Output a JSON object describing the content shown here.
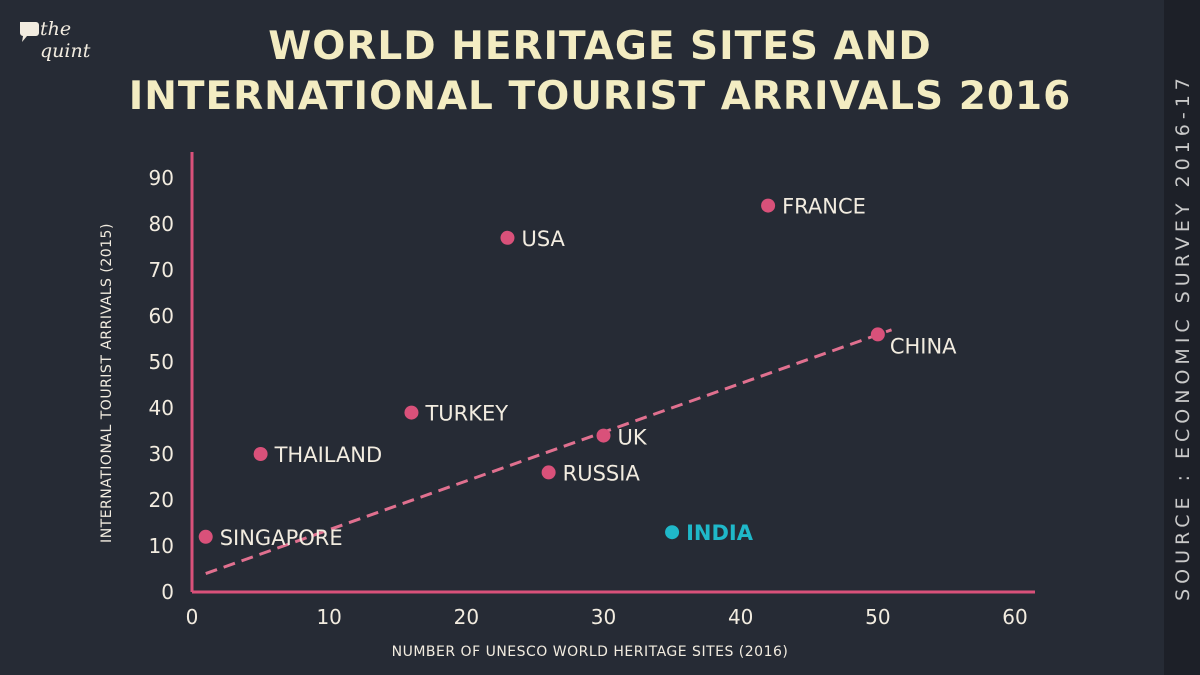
{
  "brand": {
    "line1": "the",
    "line2": "quint",
    "accent": "#e0e0e0"
  },
  "chart_data": {
    "type": "scatter",
    "title_line1": "WORLD HERITAGE SITES AND",
    "title_line2": "INTERNATIONAL TOURIST ARRIVALS 2016",
    "xlabel": "NUMBER OF UNESCO WORLD HERITAGE SITES (2016)",
    "ylabel": "INTERNATIONAL TOURIST ARRIVALS (2015)",
    "xlim": [
      0,
      60
    ],
    "ylim": [
      0,
      90
    ],
    "xticks": [
      0,
      10,
      20,
      30,
      40,
      50,
      60
    ],
    "yticks": [
      0,
      10,
      20,
      30,
      40,
      50,
      60,
      70,
      80,
      90
    ],
    "grid": false,
    "points": [
      {
        "label": "SINGAPORE",
        "x": 1,
        "y": 12,
        "color": "#d9517a"
      },
      {
        "label": "THAILAND",
        "x": 5,
        "y": 30,
        "color": "#d9517a"
      },
      {
        "label": "TURKEY",
        "x": 16,
        "y": 39,
        "color": "#d9517a"
      },
      {
        "label": "USA",
        "x": 23,
        "y": 77,
        "color": "#d9517a"
      },
      {
        "label": "RUSSIA",
        "x": 26,
        "y": 26,
        "color": "#d9517a"
      },
      {
        "label": "UK",
        "x": 30,
        "y": 34,
        "color": "#d9517a"
      },
      {
        "label": "INDIA",
        "x": 35,
        "y": 13,
        "color": "#1fb8c9"
      },
      {
        "label": "FRANCE",
        "x": 42,
        "y": 84,
        "color": "#d9517a"
      },
      {
        "label": "CHINA",
        "x": 50,
        "y": 56,
        "color": "#d9517a"
      }
    ],
    "trendline": {
      "x": [
        1,
        51
      ],
      "y": [
        4,
        57
      ],
      "style": "dashed",
      "color": "#e0708f"
    },
    "axis_color": "#d9517a"
  },
  "source": "SOURCE : ECONOMIC SURVEY 2016-17"
}
